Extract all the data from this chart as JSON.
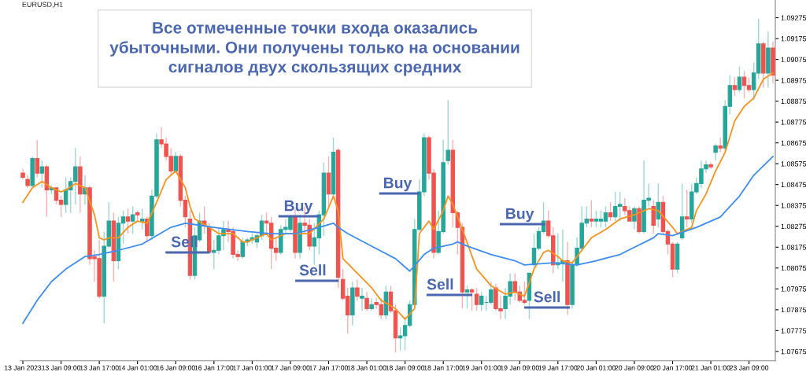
{
  "chart_data": {
    "type": "candlestick",
    "title": "Все отмеченные точки входа оказались\nубыточными. Они получены только на основании\nсигналов двух скользящих средних",
    "categories": [
      "13 Jan 2023",
      null,
      null,
      null,
      null,
      null,
      null,
      null,
      "13 Jan 09:00",
      null,
      null,
      null,
      null,
      null,
      null,
      null,
      "13 Jan 17:00",
      null,
      null,
      null,
      null,
      null,
      null,
      null,
      "14 Jan 01:00",
      null,
      null,
      null,
      null,
      null,
      null,
      null,
      "16 Jan 09:00",
      null,
      null,
      null,
      null,
      null,
      null,
      null,
      "16 Jan 17:00",
      null,
      null,
      null,
      null,
      null,
      null,
      null,
      "17 Jan 01:00",
      null,
      null,
      null,
      null,
      null,
      null,
      null,
      "17 Jan 09:00",
      null,
      null,
      null,
      null,
      null,
      null,
      null,
      "17 Jan 17:00",
      null,
      null,
      null,
      null,
      null,
      null,
      null,
      "18 Jan 01:00",
      null,
      null,
      null,
      null,
      null,
      null,
      null,
      "18 Jan 09:00",
      null,
      null,
      null,
      null,
      null,
      null,
      null,
      "18 Jan 17:00",
      null,
      null,
      null,
      null,
      null,
      null,
      null,
      "19 Jan 01:00",
      null,
      null,
      null,
      null,
      null,
      null,
      null,
      "19 Jan 09:00",
      null,
      null,
      null,
      null,
      null,
      null,
      null,
      "19 Jan 17:00",
      null,
      null,
      null,
      null,
      null,
      null,
      null,
      "20 Jan 01:00",
      null,
      null,
      null,
      null,
      null,
      null,
      null,
      "20 Jan 09:00",
      null,
      null,
      null,
      null,
      null,
      null,
      null,
      "20 Jan 17:00",
      null,
      null,
      null,
      null,
      null,
      null,
      null,
      "21 Jan 01:00",
      null,
      null,
      null,
      null,
      null,
      null,
      null,
      "23 Jan 09:00",
      null,
      null,
      null,
      null,
      null
    ],
    "ohlc": [
      [
        1.0853,
        1.0855,
        1.085,
        1.0851
      ],
      [
        1.085,
        1.0852,
        1.0846,
        1.0847
      ],
      [
        1.0847,
        1.0861,
        1.0846,
        1.086
      ],
      [
        1.086,
        1.0869,
        1.0851,
        1.0853
      ],
      [
        1.0853,
        1.0859,
        1.0846,
        1.0856
      ],
      [
        1.0856,
        1.0857,
        1.0832,
        1.0845
      ],
      [
        1.0845,
        1.0847,
        1.0843,
        1.0846
      ],
      [
        1.0846,
        1.0846,
        1.0838,
        1.084
      ],
      [
        1.084,
        1.0842,
        1.0832,
        1.0838
      ],
      [
        1.0838,
        1.0851,
        1.0834,
        1.0845
      ],
      [
        1.0845,
        1.0851,
        1.0834,
        1.0849
      ],
      [
        1.0849,
        1.0865,
        1.0838,
        1.0856
      ],
      [
        1.0856,
        1.0861,
        1.0834,
        1.0843
      ],
      [
        1.0843,
        1.0852,
        1.0838,
        1.0846
      ],
      [
        1.0846,
        1.0847,
        1.0809,
        1.0812
      ],
      [
        1.0813,
        1.0816,
        1.0801,
        1.0812
      ],
      [
        1.0812,
        1.0821,
        1.0793,
        1.0794
      ],
      [
        1.0794,
        1.0825,
        1.0781,
        1.0818
      ],
      [
        1.0818,
        1.0839,
        1.0817,
        1.083
      ],
      [
        1.083,
        1.0834,
        1.0801,
        1.0811
      ],
      [
        1.0811,
        1.0832,
        1.0807,
        1.0829
      ],
      [
        1.0829,
        1.0835,
        1.0819,
        1.0832
      ],
      [
        1.0832,
        1.0836,
        1.0824,
        1.083
      ],
      [
        1.083,
        1.0837,
        1.0824,
        1.0833
      ],
      [
        1.0834,
        1.0835,
        1.083,
        1.0833
      ],
      [
        1.083,
        1.0836,
        1.0826,
        1.0831
      ],
      [
        1.0831,
        1.0832,
        1.082,
        1.0823
      ],
      [
        1.0823,
        1.0845,
        1.0821,
        1.0842
      ],
      [
        1.0842,
        1.0872,
        1.0841,
        1.0869
      ],
      [
        1.0869,
        1.0875,
        1.0865,
        1.0867
      ],
      [
        1.0867,
        1.087,
        1.0859,
        1.0861
      ],
      [
        1.0861,
        1.0865,
        1.0852,
        1.0854
      ],
      [
        1.0854,
        1.0863,
        1.0853,
        1.0861
      ],
      [
        1.0861,
        1.0862,
        1.0837,
        1.084
      ],
      [
        1.084,
        1.0842,
        1.0827,
        1.0832
      ],
      [
        1.0831,
        1.0835,
        1.0802,
        1.0804
      ],
      [
        1.0804,
        1.0827,
        1.0802,
        1.0823
      ],
      [
        1.0821,
        1.0834,
        1.082,
        1.083
      ],
      [
        1.083,
        1.0837,
        1.0824,
        1.0828
      ],
      [
        1.0827,
        1.0829,
        1.0815,
        1.0815
      ],
      [
        1.0815,
        1.0821,
        1.0807,
        1.0816
      ],
      [
        1.0816,
        1.0827,
        1.0814,
        1.0823
      ],
      [
        1.0823,
        1.083,
        1.0816,
        1.0826
      ],
      [
        1.0826,
        1.083,
        1.082,
        1.0825
      ],
      [
        1.0825,
        1.0827,
        1.0812,
        1.0814
      ],
      [
        1.0814,
        1.0816,
        1.0811,
        1.0813
      ],
      [
        1.0813,
        1.0822,
        1.0812,
        1.082
      ],
      [
        1.082,
        1.0822,
        1.0818,
        1.0821
      ],
      [
        1.0821,
        1.0824,
        1.0819,
        1.0822
      ],
      [
        1.082,
        1.0824,
        1.0817,
        1.0823
      ],
      [
        1.0823,
        1.0833,
        1.0821,
        1.083
      ],
      [
        1.083,
        1.0834,
        1.0824,
        1.0829
      ],
      [
        1.0829,
        1.0832,
        1.0807,
        1.0817
      ],
      [
        1.0817,
        1.0822,
        1.0811,
        1.0815
      ],
      [
        1.0815,
        1.0828,
        1.0814,
        1.0826
      ],
      [
        1.0826,
        1.0831,
        1.0824,
        1.0827
      ],
      [
        1.0826,
        1.0833,
        1.0825,
        1.0832
      ],
      [
        1.0832,
        1.0836,
        1.0812,
        1.0815
      ],
      [
        1.0815,
        1.0833,
        1.0812,
        1.0829
      ],
      [
        1.0829,
        1.0837,
        1.0824,
        1.0828
      ],
      [
        1.0828,
        1.0831,
        1.0816,
        1.0818
      ],
      [
        1.0818,
        1.0829,
        1.0809,
        1.0822
      ],
      [
        1.0822,
        1.0835,
        1.0814,
        1.0833
      ],
      [
        1.0833,
        1.0858,
        1.0823,
        1.0853
      ],
      [
        1.0853,
        1.0861,
        1.0837,
        1.0843
      ],
      [
        1.0843,
        1.087,
        1.0842,
        1.0863
      ],
      [
        1.0864,
        1.0865,
        1.0798,
        1.0803
      ],
      [
        1.0802,
        1.0807,
        1.0792,
        1.0793
      ],
      [
        1.0794,
        1.0798,
        1.0776,
        1.0785
      ],
      [
        1.0785,
        1.0801,
        1.078,
        1.0798
      ],
      [
        1.0798,
        1.0802,
        1.0792,
        1.0794
      ],
      [
        1.0793,
        1.0798,
        1.0787,
        1.0794
      ],
      [
        1.0793,
        1.0796,
        1.0787,
        1.0788
      ],
      [
        1.0788,
        1.0793,
        1.0787,
        1.079
      ],
      [
        1.0791,
        1.0793,
        1.0788,
        1.079
      ],
      [
        1.079,
        1.0793,
        1.0783,
        1.0785
      ],
      [
        1.0785,
        1.0799,
        1.0783,
        1.0796
      ],
      [
        1.0796,
        1.0799,
        1.0786,
        1.0787
      ],
      [
        1.0787,
        1.079,
        1.0767,
        1.0774
      ],
      [
        1.0774,
        1.0779,
        1.0768,
        1.0775
      ],
      [
        1.0775,
        1.0784,
        1.0768,
        1.078
      ],
      [
        1.078,
        1.0792,
        1.0779,
        1.079
      ],
      [
        1.079,
        1.0831,
        1.0789,
        1.0826
      ],
      [
        1.0826,
        1.085,
        1.0825,
        1.0844
      ],
      [
        1.0844,
        1.0872,
        1.0842,
        1.087
      ],
      [
        1.087,
        1.0871,
        1.085,
        1.0853
      ],
      [
        1.0853,
        1.0855,
        1.0812,
        1.0815
      ],
      [
        1.0815,
        1.0835,
        1.0814,
        1.0825
      ],
      [
        1.0825,
        1.0869,
        1.0824,
        1.0858
      ],
      [
        1.0859,
        1.0888,
        1.0857,
        1.0864
      ],
      [
        1.0864,
        1.0869,
        1.0827,
        1.0834
      ],
      [
        1.0834,
        1.0835,
        1.0814,
        1.0827
      ],
      [
        1.0827,
        1.0829,
        1.0788,
        1.0796
      ],
      [
        1.0796,
        1.0799,
        1.0788,
        1.0797
      ],
      [
        1.0797,
        1.0798,
        1.0787,
        1.0796
      ],
      [
        1.0795,
        1.0798,
        1.0787,
        1.079
      ],
      [
        1.079,
        1.0796,
        1.0787,
        1.0794
      ],
      [
        1.0791,
        1.0794,
        1.0787,
        1.0791
      ],
      [
        1.0791,
        1.0801,
        1.079,
        1.0797
      ],
      [
        1.0798,
        1.08,
        1.0787,
        1.0788
      ],
      [
        1.0788,
        1.0794,
        1.0783,
        1.0787
      ],
      [
        1.0788,
        1.0798,
        1.0783,
        1.0794
      ],
      [
        1.0794,
        1.0805,
        1.079,
        1.0801
      ],
      [
        1.0801,
        1.0805,
        1.0792,
        1.0796
      ],
      [
        1.0796,
        1.0799,
        1.0791,
        1.0792
      ],
      [
        1.0792,
        1.0801,
        1.079,
        1.0791
      ],
      [
        1.0792,
        1.0805,
        1.0783,
        1.0805
      ],
      [
        1.0809,
        1.0824,
        1.0807,
        1.0817
      ],
      [
        1.0817,
        1.0827,
        1.0816,
        1.0825
      ],
      [
        1.0825,
        1.0839,
        1.0824,
        1.083
      ],
      [
        1.083,
        1.0835,
        1.0822,
        1.0823
      ],
      [
        1.0823,
        1.0827,
        1.0805,
        1.0809
      ],
      [
        1.0809,
        1.0824,
        1.0807,
        1.081
      ],
      [
        1.081,
        1.0826,
        1.0801,
        1.0811
      ],
      [
        1.0811,
        1.082,
        1.0785,
        1.079
      ],
      [
        1.079,
        1.0811,
        1.0788,
        1.0809
      ],
      [
        1.0809,
        1.0822,
        1.0808,
        1.0817
      ],
      [
        1.0817,
        1.0837,
        1.0816,
        1.0829
      ],
      [
        1.0829,
        1.0837,
        1.0827,
        1.0831
      ],
      [
        1.0831,
        1.084,
        1.0827,
        1.083
      ],
      [
        1.083,
        1.0835,
        1.0827,
        1.0831
      ],
      [
        1.083,
        1.0835,
        1.0827,
        1.0831
      ],
      [
        1.083,
        1.0837,
        1.0827,
        1.0834
      ],
      [
        1.0834,
        1.0839,
        1.083,
        1.0832
      ],
      [
        1.0832,
        1.0844,
        1.083,
        1.0837
      ],
      [
        1.0837,
        1.0844,
        1.083,
        1.0838
      ],
      [
        1.0837,
        1.0841,
        1.0833,
        1.0835
      ],
      [
        1.0835,
        1.0837,
        1.083,
        1.083
      ],
      [
        1.083,
        1.0837,
        1.0826,
        1.0836
      ],
      [
        1.0836,
        1.0837,
        1.0824,
        1.0825
      ],
      [
        1.0825,
        1.0859,
        1.0824,
        1.084
      ],
      [
        1.084,
        1.0848,
        1.0837,
        1.0841
      ],
      [
        1.0837,
        1.084,
        1.0824,
        1.0828
      ],
      [
        1.0831,
        1.0848,
        1.0827,
        1.0839
      ],
      [
        1.0839,
        1.0842,
        1.0824,
        1.0825
      ],
      [
        1.0825,
        1.0826,
        1.0814,
        1.0819
      ],
      [
        1.0819,
        1.082,
        1.0803,
        1.0807
      ],
      [
        1.0807,
        1.082,
        1.0805,
        1.0819
      ],
      [
        1.0822,
        1.0848,
        1.0821,
        1.0832
      ],
      [
        1.0832,
        1.0845,
        1.0827,
        1.0831
      ],
      [
        1.0831,
        1.0848,
        1.0829,
        1.0844
      ],
      [
        1.0844,
        1.0851,
        1.0843,
        1.0848
      ],
      [
        1.0848,
        1.0859,
        1.0846,
        1.0855
      ],
      [
        1.0855,
        1.0859,
        1.0853,
        1.0857
      ],
      [
        1.0857,
        1.0858,
        1.0855,
        1.0856
      ],
      [
        1.0863,
        1.0867,
        1.0859,
        1.0866
      ],
      [
        1.0866,
        1.087,
        1.0863,
        1.0865
      ],
      [
        1.0865,
        1.0888,
        1.0864,
        1.0885
      ],
      [
        1.0885,
        1.09,
        1.0881,
        1.0895
      ],
      [
        1.0895,
        1.0899,
        1.089,
        1.0893
      ],
      [
        1.0893,
        1.0904,
        1.0892,
        1.0899
      ],
      [
        1.0899,
        1.0902,
        1.0889,
        1.0895
      ],
      [
        1.0895,
        1.0899,
        1.0892,
        1.0893
      ],
      [
        1.0893,
        1.0906,
        1.0888,
        1.0901
      ],
      [
        1.0901,
        1.0927,
        1.0898,
        1.0915
      ],
      [
        1.0915,
        1.0916,
        1.0894,
        1.0901
      ],
      [
        1.0901,
        1.0921,
        1.0894,
        1.0913
      ],
      [
        1.0913,
        1.0916,
        1.0896,
        1.09
      ]
    ],
    "series": [
      {
        "type": "line",
        "color": "#f7931e",
        "values": [
          1.0839,
          null,
          1.0846,
          null,
          1.0849,
          null,
          1.0846,
          null,
          1.0844,
          1.0845,
          null,
          1.0848,
          null,
          1.0846,
          null,
          1.0833,
          1.0822,
          1.0821,
          1.0822,
          null,
          1.0822,
          null,
          1.0827,
          null,
          1.083,
          null,
          1.0829,
          null,
          1.0839,
          null,
          1.085,
          null,
          1.0854,
          null,
          1.0846,
          1.0837,
          1.0831,
          null,
          null,
          1.0827,
          null,
          1.0824,
          null,
          null,
          1.0824,
          null,
          1.082,
          1.082,
          null,
          null,
          null,
          1.0824,
          1.0821,
          null,
          null,
          1.0824,
          null,
          1.0824,
          null,
          null,
          1.0824,
          null,
          null,
          1.0831,
          null,
          1.0842,
          1.0835,
          1.0812,
          null,
          null,
          1.0805,
          null,
          null,
          1.0798,
          null,
          1.0792,
          null,
          null,
          1.0788,
          null,
          1.0783,
          null,
          1.0788,
          1.0824,
          null,
          1.083,
          1.0826,
          null,
          1.0835,
          1.0842,
          1.0838,
          null,
          1.0826,
          null,
          null,
          1.0807,
          null,
          null,
          1.0799,
          null,
          null,
          1.0795,
          null,
          1.0796,
          null,
          1.0794,
          null,
          1.0807,
          null,
          1.0815,
          1.0816,
          null,
          1.0813,
          1.0811,
          null,
          1.081,
          null,
          1.0816,
          null,
          1.0822,
          null,
          null,
          1.0826,
          null,
          null,
          1.0831,
          null,
          null,
          1.0833,
          null,
          null,
          1.0836,
          null,
          1.0835,
          null,
          null,
          1.0827,
          1.0824,
          null,
          null,
          1.0827,
          1.0835,
          null,
          1.0843,
          null,
          1.0854,
          null,
          1.0863,
          null,
          1.0878,
          null,
          1.0885,
          null,
          1.0889,
          null,
          1.0898,
          null,
          1.0901
        ]
      },
      {
        "type": "line",
        "color": "#3d8ef0",
        "values": [
          1.0781,
          null,
          null,
          1.0792,
          null,
          null,
          1.0801,
          null,
          null,
          1.0807,
          null,
          null,
          null,
          1.0813,
          null,
          null,
          1.0814,
          null,
          null,
          null,
          1.0816,
          null,
          null,
          null,
          null,
          1.0819,
          null,
          null,
          null,
          null,
          null,
          1.0827,
          null,
          null,
          1.0829,
          null,
          null,
          null,
          null,
          null,
          1.0827,
          null,
          null,
          null,
          null,
          null,
          null,
          1.0825,
          null,
          null,
          null,
          null,
          1.0824,
          null,
          null,
          null,
          null,
          1.0824,
          null,
          null,
          null,
          null,
          1.0827,
          null,
          null,
          1.0829,
          1.0827,
          null,
          1.0824,
          null,
          null,
          null,
          null,
          1.0818,
          null,
          null,
          null,
          null,
          1.0812,
          null,
          null,
          1.0806,
          null,
          null,
          1.0814,
          null,
          1.0817,
          null,
          null,
          null,
          1.0819,
          1.082,
          null,
          1.0818,
          null,
          null,
          null,
          null,
          1.0814,
          null,
          null,
          null,
          null,
          1.0811,
          null,
          1.0809,
          null,
          null,
          null,
          null,
          null,
          1.081,
          null,
          null,
          null,
          null,
          1.0809,
          null,
          null,
          null,
          1.0811,
          null,
          null,
          null,
          null,
          1.0814,
          null,
          null,
          null,
          null,
          null,
          null,
          1.0822,
          1.0824,
          null,
          null,
          1.0823,
          null,
          null,
          null,
          null,
          1.0827,
          null,
          null,
          null,
          null,
          1.0832,
          null,
          null,
          null,
          1.0842,
          null,
          null,
          1.0852,
          null,
          null,
          null,
          1.0861
        ]
      }
    ],
    "ylim": [
      1.0763,
      1.0936
    ],
    "yticks": [
      1.07675,
      1.07775,
      1.07875,
      1.07975,
      1.08075,
      1.08175,
      1.08275,
      1.08375,
      1.08475,
      1.08575,
      1.08675,
      1.08775,
      1.08875,
      1.08975,
      1.09075,
      1.09175,
      1.09275
    ],
    "annotations": [
      "EURUSD,H1",
      "Sell",
      "Buy",
      "Sell",
      "Buy",
      "Sell",
      "Buy",
      "Sell"
    ],
    "grid": false,
    "legend": false
  }
}
